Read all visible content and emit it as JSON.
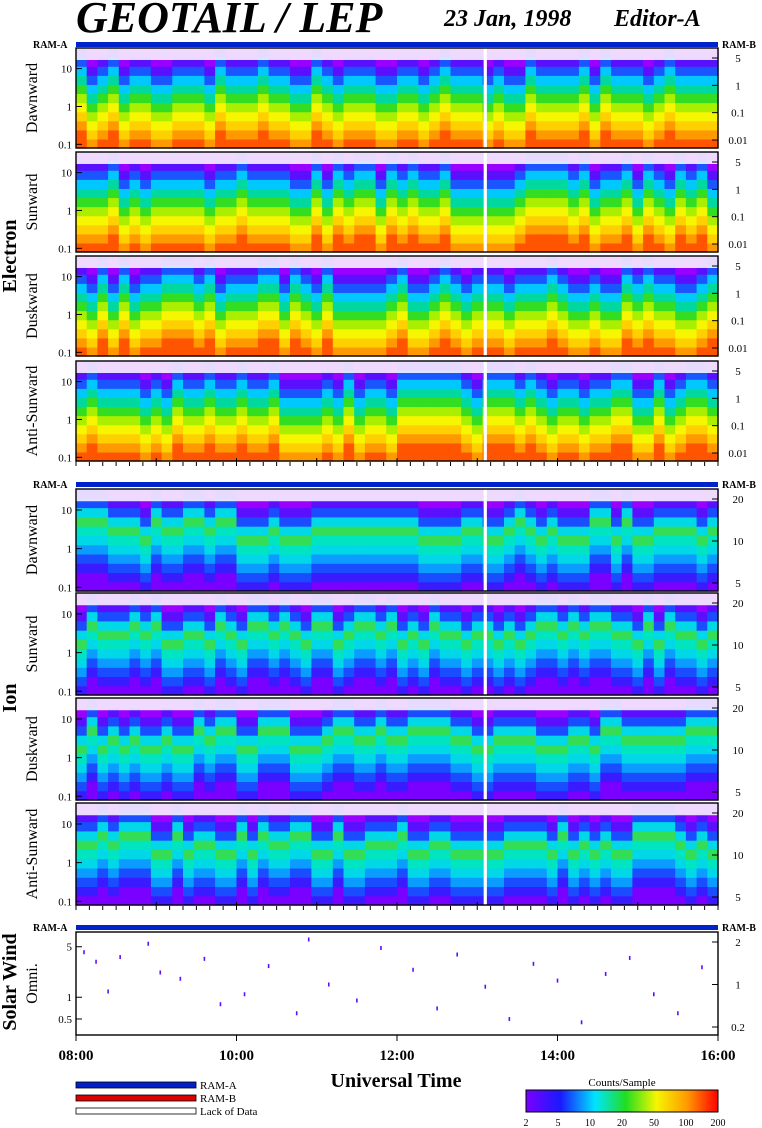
{
  "title": {
    "main": "GEOTAIL / LEP",
    "date": "23 Jan, 1998",
    "editor": "Editor-A"
  },
  "xaxis": {
    "label": "Universal Time",
    "ticks": [
      "08:00",
      "10:00",
      "12:00",
      "14:00",
      "16:00"
    ],
    "range_hours": [
      8,
      16
    ]
  },
  "ram_labels": {
    "a": "RAM-A",
    "b": "RAM-B"
  },
  "groups": [
    "Electron",
    "Ion",
    "Solar Wind"
  ],
  "legend": {
    "items": [
      {
        "label": "RAM-A",
        "color": "#0022cc"
      },
      {
        "label": "RAM-B",
        "color": "#dd0000"
      },
      {
        "label": "Lack of Data",
        "color": "#ffffff"
      }
    ]
  },
  "colorbar": {
    "title": "Counts/Sample",
    "ticks": [
      "2",
      "5",
      "10",
      "20",
      "50",
      "100",
      "200"
    ]
  },
  "colors": {
    "ram_bar": "#0022cc",
    "background": "#ffffff",
    "axis": "#000000"
  },
  "chart_data": [
    {
      "type": "heatmap",
      "group": "Electron",
      "panel": "Dawnward",
      "left_axis_ticks": [
        "10",
        "1",
        "0.1"
      ],
      "right_axis_ticks": [
        "5",
        "1",
        "0.1",
        "0.01"
      ],
      "left_scale": "log",
      "data_gaps_hours": [
        [
          13.08,
          13.12
        ]
      ]
    },
    {
      "type": "heatmap",
      "group": "Electron",
      "panel": "Sunward",
      "left_axis_ticks": [
        "10",
        "1",
        "0.1"
      ],
      "right_axis_ticks": [
        "5",
        "1",
        "0.1",
        "0.01"
      ],
      "left_scale": "log",
      "data_gaps_hours": [
        [
          13.08,
          13.12
        ]
      ]
    },
    {
      "type": "heatmap",
      "group": "Electron",
      "panel": "Duskward",
      "left_axis_ticks": [
        "10",
        "1",
        "0.1"
      ],
      "right_axis_ticks": [
        "5",
        "1",
        "0.1",
        "0.01"
      ],
      "left_scale": "log",
      "data_gaps_hours": [
        [
          13.08,
          13.12
        ]
      ]
    },
    {
      "type": "heatmap",
      "group": "Electron",
      "panel": "Anti-Sunward",
      "left_axis_ticks": [
        "10",
        "1",
        "0.1"
      ],
      "right_axis_ticks": [
        "5",
        "1",
        "0.1",
        "0.01"
      ],
      "left_scale": "log",
      "data_gaps_hours": [
        [
          13.08,
          13.12
        ]
      ]
    },
    {
      "type": "heatmap",
      "group": "Ion",
      "panel": "Dawnward",
      "left_axis_ticks": [
        "10",
        "1",
        "0.1"
      ],
      "right_axis_ticks": [
        "20",
        "10",
        "5"
      ],
      "left_scale": "log",
      "data_gaps_hours": [
        [
          13.08,
          13.12
        ]
      ]
    },
    {
      "type": "heatmap",
      "group": "Ion",
      "panel": "Sunward",
      "left_axis_ticks": [
        "10",
        "1",
        "0.1"
      ],
      "right_axis_ticks": [
        "20",
        "10",
        "5"
      ],
      "left_scale": "log",
      "data_gaps_hours": [
        [
          13.08,
          13.12
        ]
      ]
    },
    {
      "type": "heatmap",
      "group": "Ion",
      "panel": "Duskward",
      "left_axis_ticks": [
        "10",
        "1",
        "0.1"
      ],
      "right_axis_ticks": [
        "20",
        "10",
        "5"
      ],
      "left_scale": "log",
      "data_gaps_hours": [
        [
          13.08,
          13.12
        ]
      ]
    },
    {
      "type": "heatmap",
      "group": "Ion",
      "panel": "Anti-Sunward",
      "left_axis_ticks": [
        "10",
        "1",
        "0.1"
      ],
      "right_axis_ticks": [
        "20",
        "10",
        "5"
      ],
      "left_scale": "log",
      "data_gaps_hours": [
        [
          13.08,
          13.12
        ]
      ]
    },
    {
      "type": "scatter",
      "group": "Solar Wind",
      "panel": "Omni.",
      "left_axis_ticks": [
        "5",
        "1",
        "0.5"
      ],
      "right_axis_ticks": [
        "2",
        "1",
        "0.2"
      ],
      "left_scale": "log",
      "x_hours": [
        8.1,
        8.25,
        8.4,
        8.55,
        8.9,
        9.05,
        9.3,
        9.6,
        9.8,
        10.1,
        10.4,
        10.75,
        10.9,
        11.15,
        11.5,
        11.8,
        12.2,
        12.5,
        12.75,
        13.1,
        13.4,
        13.7,
        14.0,
        14.3,
        14.6,
        14.9,
        15.2,
        15.5,
        15.8
      ],
      "y_values": [
        4.2,
        3.1,
        1.2,
        3.6,
        5.5,
        2.2,
        1.8,
        3.4,
        0.8,
        1.1,
        2.7,
        0.6,
        6.3,
        1.5,
        0.9,
        4.8,
        2.4,
        0.7,
        3.9,
        1.4,
        0.5,
        2.9,
        1.7,
        0.45,
        2.1,
        3.5,
        1.1,
        0.6,
        2.6
      ]
    }
  ]
}
